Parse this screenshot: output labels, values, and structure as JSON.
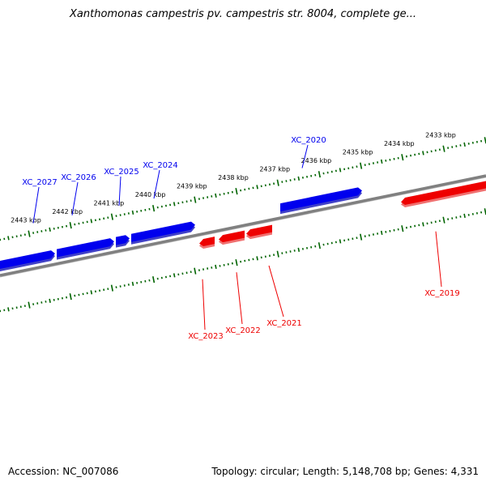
{
  "title": "Xanthomonas campestris pv. campestris str. 8004, complete ge...",
  "footer": {
    "accession": "Accession: NC_007086",
    "topology": "Topology: circular; Length: 5,148,708 bp; Genes: 4,331"
  },
  "colors": {
    "forward": "#0000ee",
    "reverse": "#ee0000",
    "backbone": "#808080",
    "ticks": "#006400"
  },
  "ticks": [
    {
      "label": "2443 kbp",
      "kbp": 2443
    },
    {
      "label": "2442 kbp",
      "kbp": 2442
    },
    {
      "label": "2441 kbp",
      "kbp": 2441
    },
    {
      "label": "2440 kbp",
      "kbp": 2440
    },
    {
      "label": "2439 kbp",
      "kbp": 2439
    },
    {
      "label": "2438 kbp",
      "kbp": 2438
    },
    {
      "label": "2437 kbp",
      "kbp": 2437
    },
    {
      "label": "2436 kbp",
      "kbp": 2436
    },
    {
      "label": "2435 kbp",
      "kbp": 2435
    },
    {
      "label": "2434 kbp",
      "kbp": 2434
    },
    {
      "label": "2433 kbp",
      "kbp": 2433
    }
  ],
  "genes": [
    {
      "name": "XC_2027",
      "strand": "forward"
    },
    {
      "name": "XC_2026",
      "strand": "forward"
    },
    {
      "name": "XC_2025",
      "strand": "forward"
    },
    {
      "name": "XC_2024",
      "strand": "forward"
    },
    {
      "name": "XC_2020",
      "strand": "forward"
    },
    {
      "name": "XC_2023",
      "strand": "reverse"
    },
    {
      "name": "XC_2022",
      "strand": "reverse"
    },
    {
      "name": "XC_2021",
      "strand": "reverse"
    },
    {
      "name": "XC_2019",
      "strand": "reverse"
    }
  ]
}
